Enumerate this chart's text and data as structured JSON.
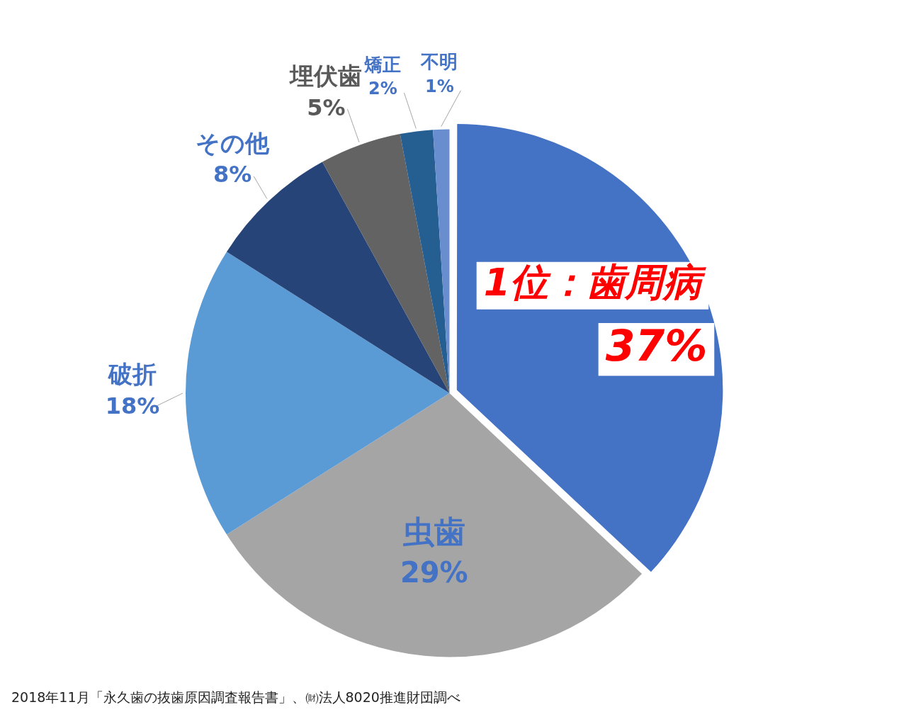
{
  "chart_data": {
    "type": "pie",
    "categories": [
      "1位：歯周病",
      "虫歯",
      "破折",
      "その他",
      "埋伏歯",
      "矯正",
      "不明"
    ],
    "values": [
      37,
      29,
      18,
      8,
      5,
      2,
      1
    ],
    "colors": [
      "#4472c4",
      "#a5a5a5",
      "#5b9bd5",
      "#264478",
      "#636363",
      "#255e91",
      "#698ed0"
    ],
    "value_labels": [
      "37%",
      "29%",
      "18%",
      "8%",
      "5%",
      "2%",
      "1%"
    ],
    "legend": false,
    "annotations": [
      "2018年11月「永久歯の抜歯原因調査報告書」、㈶法人8020推進財団調べ"
    ]
  }
}
